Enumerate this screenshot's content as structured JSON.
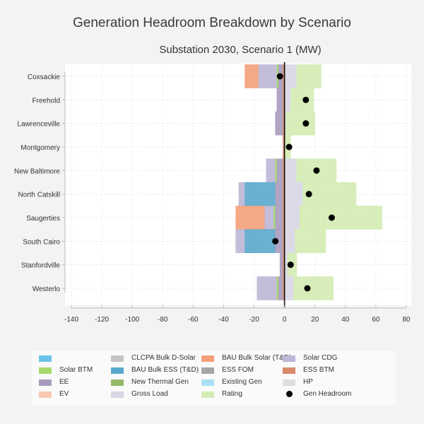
{
  "chart_data": {
    "type": "bar",
    "orientation": "horizontal",
    "stacked": true,
    "title": "Generation Headroom Breakdown by Scenario",
    "subtitle": "Substation 2030, Scenario 1 (MW)",
    "xlabel": "",
    "ylabel": "",
    "xlim": [
      -140,
      80
    ],
    "x_ticks": [
      "-140",
      "-120",
      "-100",
      "-80",
      "-60",
      "-40",
      "-20",
      "0",
      "20",
      "40",
      "60",
      "80"
    ],
    "x_tick_values": [
      -140,
      -120,
      -100,
      -80,
      -60,
      -40,
      -20,
      0,
      20,
      40,
      60,
      80
    ],
    "grid": true,
    "categories": [
      "Coxsackie",
      "Freehold",
      "Lawrenceville",
      "Montgomery",
      "New Baltimore",
      "North Catskill",
      "Saugerties",
      "South Cairo",
      "Stanfordville",
      "Westerlo"
    ],
    "segments": [
      {
        "category": "Coxsackie",
        "parts": [
          {
            "series": "BAU Bulk Solar (T&D)",
            "from": -26,
            "to": -17
          },
          {
            "series": "Solar CDG",
            "from": -17,
            "to": -5
          },
          {
            "series": "Solar BTM",
            "from": -5,
            "to": -4
          },
          {
            "series": "EE",
            "from": -4,
            "to": -1
          },
          {
            "series": "ESS BTM",
            "from": -1,
            "to": 0
          },
          {
            "series": "Gross Load",
            "from": 0,
            "to": 8
          },
          {
            "series": "Rating",
            "from": 8,
            "to": 24
          }
        ]
      },
      {
        "category": "Freehold",
        "parts": [
          {
            "series": "EE",
            "from": -5,
            "to": -1
          },
          {
            "series": "ESS BTM",
            "from": -1,
            "to": 0
          },
          {
            "series": "Gross Load",
            "from": 0,
            "to": 4
          },
          {
            "series": "Rating",
            "from": 4,
            "to": 19
          }
        ]
      },
      {
        "category": "Lawrenceville",
        "parts": [
          {
            "series": "EE",
            "from": -6,
            "to": -1
          },
          {
            "series": "ESS BTM",
            "from": -1,
            "to": 0
          },
          {
            "series": "Gross Load",
            "from": 0,
            "to": 1
          },
          {
            "series": "Rating",
            "from": 1,
            "to": 20
          }
        ]
      },
      {
        "category": "Montgomery",
        "parts": [
          {
            "series": "ESS BTM",
            "from": -1,
            "to": 0
          },
          {
            "series": "Rating",
            "from": 0,
            "to": 4
          }
        ]
      },
      {
        "category": "New Baltimore",
        "parts": [
          {
            "series": "Solar CDG",
            "from": -12,
            "to": -6
          },
          {
            "series": "Solar BTM",
            "from": -6,
            "to": -5
          },
          {
            "series": "EE",
            "from": -5,
            "to": -1
          },
          {
            "series": "ESS BTM",
            "from": -1,
            "to": 0
          },
          {
            "series": "Gross Load",
            "from": 0,
            "to": 8
          },
          {
            "series": "Rating",
            "from": 8,
            "to": 34
          }
        ]
      },
      {
        "category": "North Catskill",
        "parts": [
          {
            "series": "Solar CDG",
            "from": -30,
            "to": -26
          },
          {
            "series": "BAU Bulk ESS (T&D)",
            "from": -26,
            "to": -6
          },
          {
            "series": "EE",
            "from": -6,
            "to": -1
          },
          {
            "series": "ESS BTM",
            "from": -1,
            "to": 0
          },
          {
            "series": "Gross Load",
            "from": 0,
            "to": 12
          },
          {
            "series": "Rating",
            "from": 12,
            "to": 47
          }
        ]
      },
      {
        "category": "Saugerties",
        "parts": [
          {
            "series": "BAU Bulk Solar (T&D)",
            "from": -32,
            "to": -13
          },
          {
            "series": "Solar CDG",
            "from": -13,
            "to": -7
          },
          {
            "series": "Solar BTM",
            "from": -7,
            "to": -6
          },
          {
            "series": "EE",
            "from": -6,
            "to": -1
          },
          {
            "series": "ESS BTM",
            "from": -1,
            "to": 0
          },
          {
            "series": "Gross Load",
            "from": 0,
            "to": 10
          },
          {
            "series": "Rating",
            "from": 10,
            "to": 64
          }
        ]
      },
      {
        "category": "South Cairo",
        "parts": [
          {
            "series": "Solar CDG",
            "from": -32,
            "to": -26
          },
          {
            "series": "BAU Bulk ESS (T&D)",
            "from": -26,
            "to": -6
          },
          {
            "series": "EE",
            "from": -6,
            "to": -1
          },
          {
            "series": "ESS BTM",
            "from": -1,
            "to": 0
          },
          {
            "series": "Gross Load",
            "from": 0,
            "to": 7
          },
          {
            "series": "Rating",
            "from": 7,
            "to": 27
          }
        ]
      },
      {
        "category": "Stanfordville",
        "parts": [
          {
            "series": "EE",
            "from": -3,
            "to": -1
          },
          {
            "series": "ESS BTM",
            "from": -1,
            "to": 0
          },
          {
            "series": "Gross Load",
            "from": 0,
            "to": 2
          },
          {
            "series": "Rating",
            "from": 2,
            "to": 8
          }
        ]
      },
      {
        "category": "Westerlo",
        "parts": [
          {
            "series": "Solar CDG",
            "from": -18,
            "to": -5
          },
          {
            "series": "Solar BTM",
            "from": -5,
            "to": -4
          },
          {
            "series": "EE",
            "from": -4,
            "to": -1
          },
          {
            "series": "ESS BTM",
            "from": -1,
            "to": 0
          },
          {
            "series": "Gross Load",
            "from": 0,
            "to": 6
          },
          {
            "series": "Rating",
            "from": 6,
            "to": 32
          }
        ]
      }
    ],
    "gen_headroom": [
      -3,
      14,
      14,
      3,
      21,
      16,
      31,
      -6,
      4,
      15
    ],
    "legend_position": "bottom",
    "legend": [
      {
        "label": "",
        "color": "#6cc3ea",
        "kind": "swatch"
      },
      {
        "label": "CLCPA Bulk D-Solar",
        "color": "#c4c4c4",
        "kind": "swatch"
      },
      {
        "label": "BAU Bulk Solar (T&D)",
        "color": "#f4a07a",
        "kind": "swatch"
      },
      {
        "label": "Solar CDG",
        "color": "#bdb6d6",
        "kind": "swatch"
      },
      {
        "label": "Solar BTM",
        "color": "#a6d96a",
        "kind": "swatch"
      },
      {
        "label": "BAU Bulk ESS (T&D)",
        "color": "#5aa7cc",
        "kind": "swatch"
      },
      {
        "label": "ESS FOM",
        "color": "#a6a6a6",
        "kind": "swatch"
      },
      {
        "label": "ESS BTM",
        "color": "#d98a6a",
        "kind": "swatch"
      },
      {
        "label": "EE",
        "color": "#a79cbd",
        "kind": "swatch"
      },
      {
        "label": "New Thermal Gen",
        "color": "#93b968",
        "kind": "swatch"
      },
      {
        "label": "Existing Gen",
        "color": "#a9e0f5",
        "kind": "swatch"
      },
      {
        "label": "HP",
        "color": "#dedede",
        "kind": "swatch"
      },
      {
        "label": "EV",
        "color": "#f8c9b2",
        "kind": "swatch"
      },
      {
        "label": "Gross Load",
        "color": "#d9d6e6",
        "kind": "swatch"
      },
      {
        "label": "Rating",
        "color": "#d3ecb3",
        "kind": "swatch"
      },
      {
        "label": "Gen Headroom",
        "color": "#000000",
        "kind": "dot"
      }
    ]
  }
}
